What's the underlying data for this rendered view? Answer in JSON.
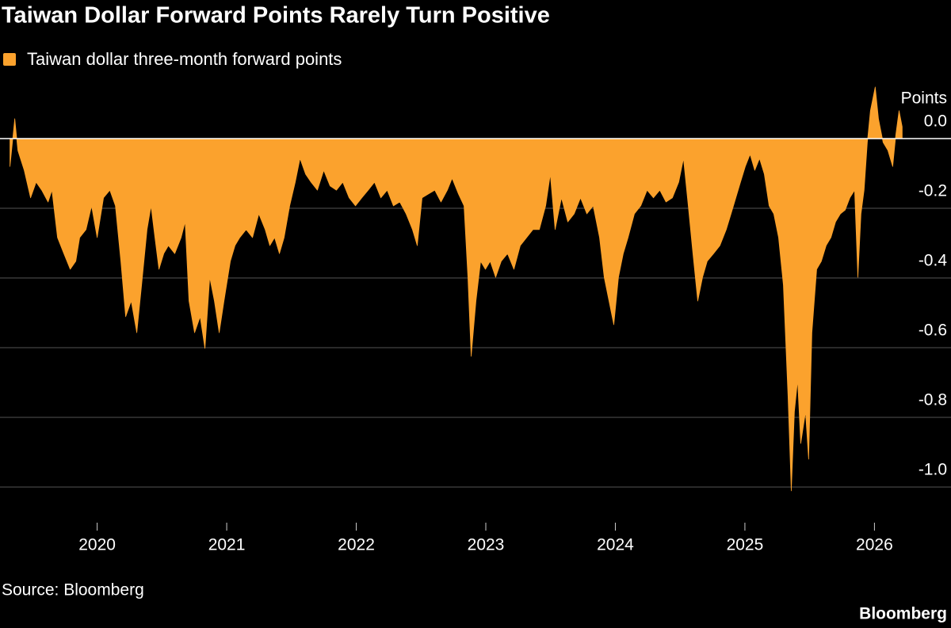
{
  "chart_data": {
    "type": "area",
    "title": "Taiwan Dollar Forward Points Rarely Turn Positive",
    "y_label": "Points",
    "source": "Source: Bloomberg",
    "brand": "Bloomberg",
    "series": [
      {
        "name": "Taiwan dollar three-month forward points",
        "color": "#fba22d",
        "x": [
          2019.327,
          2019.364,
          2019.388,
          2019.437,
          2019.486,
          2019.529,
          2019.572,
          2019.621,
          2019.651,
          2019.694,
          2019.743,
          2019.792,
          2019.835,
          2019.865,
          2019.914,
          2019.957,
          2020.0,
          2020.049,
          2020.098,
          2020.141,
          2020.183,
          2020.22,
          2020.263,
          2020.306,
          2020.343,
          2020.385,
          2020.416,
          2020.446,
          2020.477,
          2020.514,
          2020.55,
          2020.599,
          2020.648,
          2020.679,
          2020.709,
          2020.752,
          2020.795,
          2020.832,
          2020.869,
          2020.905,
          2020.942,
          2020.979,
          2021.028,
          2021.064,
          2021.101,
          2021.15,
          2021.199,
          2021.248,
          2021.297,
          2021.333,
          2021.37,
          2021.407,
          2021.443,
          2021.486,
          2021.529,
          2021.566,
          2021.609,
          2021.651,
          2021.7,
          2021.749,
          2021.798,
          2021.847,
          2021.896,
          2021.945,
          2021.994,
          2022.043,
          2022.092,
          2022.141,
          2022.19,
          2022.239,
          2022.287,
          2022.336,
          2022.385,
          2022.434,
          2022.471,
          2022.508,
          2022.557,
          2022.606,
          2022.654,
          2022.703,
          2022.74,
          2022.789,
          2022.832,
          2022.862,
          2022.887,
          2022.924,
          2022.96,
          2022.997,
          2023.034,
          2023.076,
          2023.119,
          2023.168,
          2023.217,
          2023.266,
          2023.315,
          2023.364,
          2023.413,
          2023.462,
          2023.498,
          2023.535,
          2023.584,
          2023.633,
          2023.682,
          2023.731,
          2023.78,
          2023.829,
          2023.878,
          2023.914,
          2023.951,
          2023.988,
          2024.024,
          2024.061,
          2024.098,
          2024.147,
          2024.196,
          2024.245,
          2024.294,
          2024.343,
          2024.391,
          2024.44,
          2024.489,
          2024.526,
          2024.563,
          2024.599,
          2024.636,
          2024.673,
          2024.709,
          2024.758,
          2024.807,
          2024.856,
          2024.893,
          2024.93,
          2024.966,
          2025.003,
          2025.04,
          2025.076,
          2025.113,
          2025.15,
          2025.187,
          2025.223,
          2025.26,
          2025.297,
          2025.333,
          2025.358,
          2025.382,
          2025.407,
          2025.431,
          2025.468,
          2025.492,
          2025.517,
          2025.554,
          2025.59,
          2025.627,
          2025.664,
          2025.7,
          2025.737,
          2025.774,
          2025.81,
          2025.847,
          2025.872,
          2025.896,
          2025.92,
          2025.945,
          2025.969,
          2026.006,
          2026.031,
          2026.067,
          2026.104,
          2026.141,
          2026.165,
          2026.19,
          2026.214
        ],
        "values": [
          -0.08,
          0.057,
          -0.034,
          -0.091,
          -0.17,
          -0.125,
          -0.148,
          -0.182,
          -0.148,
          -0.284,
          -0.33,
          -0.375,
          -0.352,
          -0.284,
          -0.261,
          -0.193,
          -0.284,
          -0.17,
          -0.148,
          -0.193,
          -0.352,
          -0.511,
          -0.466,
          -0.557,
          -0.42,
          -0.261,
          -0.193,
          -0.284,
          -0.375,
          -0.33,
          -0.307,
          -0.33,
          -0.284,
          -0.239,
          -0.466,
          -0.557,
          -0.511,
          -0.602,
          -0.398,
          -0.466,
          -0.557,
          -0.466,
          -0.352,
          -0.307,
          -0.284,
          -0.261,
          -0.284,
          -0.216,
          -0.261,
          -0.307,
          -0.284,
          -0.33,
          -0.284,
          -0.193,
          -0.125,
          -0.057,
          -0.102,
          -0.125,
          -0.148,
          -0.091,
          -0.136,
          -0.148,
          -0.125,
          -0.17,
          -0.193,
          -0.17,
          -0.148,
          -0.125,
          -0.17,
          -0.148,
          -0.193,
          -0.182,
          -0.216,
          -0.261,
          -0.307,
          -0.17,
          -0.159,
          -0.148,
          -0.182,
          -0.148,
          -0.114,
          -0.159,
          -0.193,
          -0.398,
          -0.625,
          -0.466,
          -0.352,
          -0.375,
          -0.352,
          -0.398,
          -0.352,
          -0.33,
          -0.375,
          -0.307,
          -0.284,
          -0.261,
          -0.261,
          -0.193,
          -0.102,
          -0.261,
          -0.17,
          -0.239,
          -0.216,
          -0.17,
          -0.216,
          -0.193,
          -0.284,
          -0.398,
          -0.466,
          -0.534,
          -0.398,
          -0.33,
          -0.284,
          -0.216,
          -0.193,
          -0.148,
          -0.17,
          -0.148,
          -0.182,
          -0.17,
          -0.125,
          -0.057,
          -0.193,
          -0.33,
          -0.466,
          -0.398,
          -0.352,
          -0.33,
          -0.307,
          -0.261,
          -0.216,
          -0.17,
          -0.125,
          -0.08,
          -0.045,
          -0.091,
          -0.057,
          -0.102,
          -0.193,
          -0.216,
          -0.284,
          -0.42,
          -0.739,
          -1.011,
          -0.784,
          -0.693,
          -0.875,
          -0.784,
          -0.92,
          -0.557,
          -0.375,
          -0.352,
          -0.307,
          -0.284,
          -0.239,
          -0.216,
          -0.205,
          -0.17,
          -0.148,
          -0.398,
          -0.216,
          -0.148,
          -0.011,
          0.08,
          0.148,
          0.057,
          -0.011,
          -0.034,
          -0.08,
          0.011,
          0.08,
          0.034
        ]
      }
    ],
    "xlim": [
      2019.25,
      2026.23
    ],
    "xticks": [
      2020,
      2021,
      2022,
      2023,
      2024,
      2025,
      2026
    ],
    "ylim": [
      -1.1,
      0.2
    ],
    "yticks": [
      {
        "value": 0,
        "label": "0.0"
      },
      -0.2,
      -0.4,
      -0.6,
      -0.8,
      {
        "value": -1,
        "label": "-1.0"
      }
    ],
    "grid": true
  }
}
